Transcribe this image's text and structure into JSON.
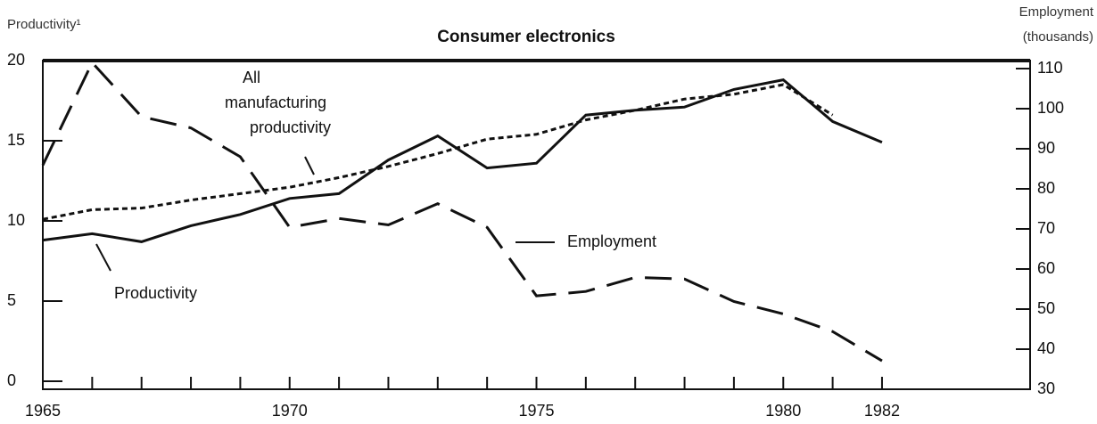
{
  "chart_data": {
    "type": "line",
    "title": "Consumer electronics",
    "y_label": "Productivity¹",
    "y2_label": [
      "Employment",
      "(thousands)"
    ],
    "x": [
      1965,
      1966,
      1967,
      1968,
      1969,
      1970,
      1971,
      1972,
      1973,
      1974,
      1975,
      1976,
      1977,
      1978,
      1979,
      1980,
      1981,
      1982
    ],
    "xlim": [
      1965,
      1985
    ],
    "xticks": [
      1965,
      1970,
      1975,
      1980,
      1982
    ],
    "ylim": [
      -0.5,
      20
    ],
    "yticks": [
      0,
      5,
      10,
      15,
      20
    ],
    "y2lim": [
      30,
      112
    ],
    "y2ticks": [
      30,
      40,
      50,
      60,
      70,
      80,
      90,
      100,
      110
    ],
    "series": [
      {
        "name": "Productivity",
        "color": "#111111",
        "style": "solid",
        "values": [
          8.8,
          9.2,
          8.7,
          9.7,
          10.4,
          11.4,
          11.7,
          13.8,
          15.3,
          13.3,
          13.6,
          16.6,
          16.9,
          17.1,
          18.2,
          18.8,
          16.2,
          14.9
        ]
      },
      {
        "name": "All manufacturing productivity",
        "color": "#111111",
        "style": "dotted",
        "values": [
          10.1,
          10.7,
          10.8,
          11.3,
          11.7,
          12.1,
          12.7,
          13.4,
          14.2,
          15.1,
          15.4,
          16.3,
          16.9,
          17.6,
          17.9,
          18.5,
          16.6,
          null
        ]
      },
      {
        "name": "Employment",
        "color": "#111111",
        "style": "dashed",
        "axis": "y2",
        "values": [
          85.9,
          111.5,
          98,
          95.2,
          88,
          70.4,
          72.6,
          71,
          76.3,
          70.4,
          53.3,
          54.4,
          57.9,
          57.5,
          51.9,
          48.8,
          44.4,
          37.1
        ]
      }
    ],
    "annotations": [
      "All",
      "manufacturing",
      "productivity"
    ]
  }
}
